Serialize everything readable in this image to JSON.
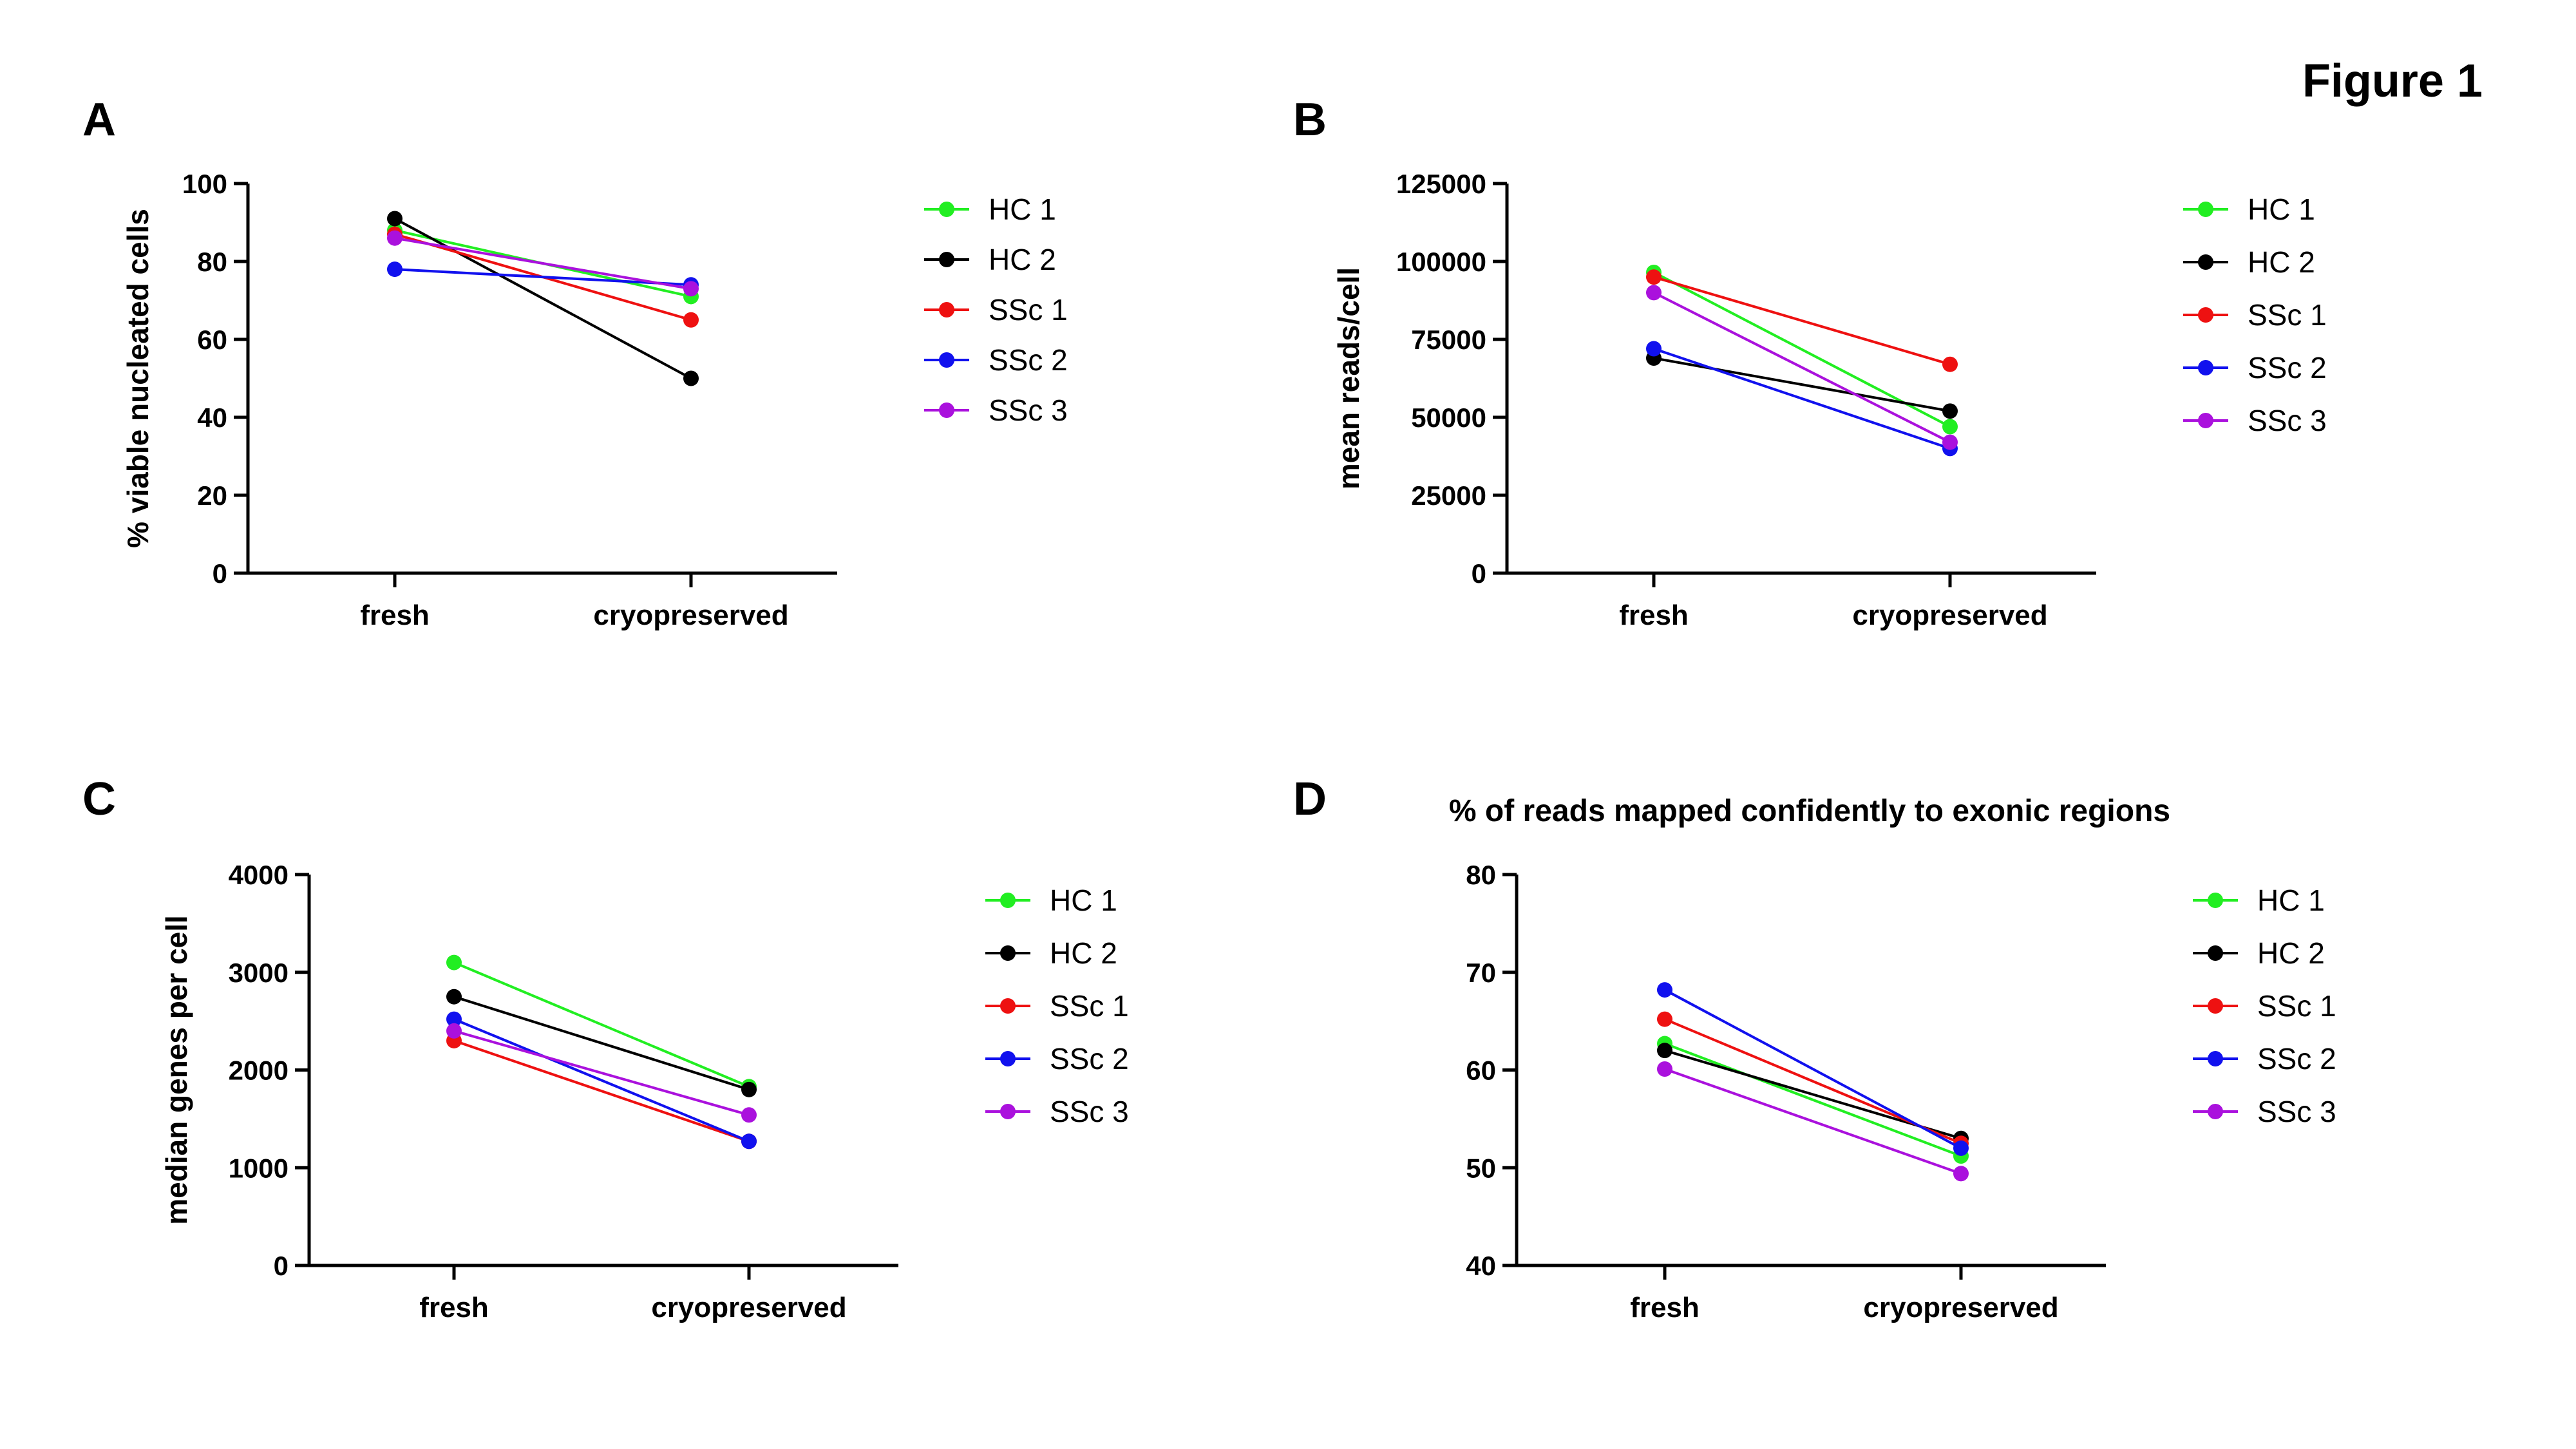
{
  "figure_title": "Figure 1",
  "colors": {
    "HC 1": "#22ee22",
    "HC 2": "#000000",
    "SSc 1": "#ee1111",
    "SSc 2": "#1111ee",
    "SSc 3": "#aa11dd"
  },
  "panels": [
    {
      "letter": "A",
      "title": ""
    },
    {
      "letter": "B",
      "title": ""
    },
    {
      "letter": "C",
      "title": ""
    },
    {
      "letter": "D",
      "title": "% of reads mapped confidently to exonic regions"
    }
  ],
  "chart_data": [
    {
      "type": "line",
      "title": "",
      "xlabel": "",
      "ylabel": "% viable nucleated cells",
      "categories": [
        "fresh",
        "cryopreserved"
      ],
      "ylim": [
        0,
        100
      ],
      "yticks": [
        0,
        20,
        40,
        60,
        80,
        100
      ],
      "ytick_labels": [
        "0",
        "20",
        "40",
        "60",
        "80",
        "100"
      ],
      "legend_position": "right",
      "series": [
        {
          "name": "HC 1",
          "values": [
            88,
            71
          ]
        },
        {
          "name": "HC 2",
          "values": [
            91,
            50
          ]
        },
        {
          "name": "SSc 1",
          "values": [
            87,
            65
          ]
        },
        {
          "name": "SSc 2",
          "values": [
            78,
            74
          ]
        },
        {
          "name": "SSc 3",
          "values": [
            86,
            73
          ]
        }
      ]
    },
    {
      "type": "line",
      "title": "",
      "xlabel": "",
      "ylabel": "mean reads/cell",
      "categories": [
        "fresh",
        "cryopreserved"
      ],
      "ylim": [
        0,
        125000
      ],
      "yticks": [
        0,
        25000,
        50000,
        75000,
        100000,
        125000
      ],
      "ytick_labels": [
        "0",
        "25000",
        "50000",
        "75000",
        "100000",
        "125000"
      ],
      "legend_position": "right",
      "series": [
        {
          "name": "HC 1",
          "values": [
            96500,
            47000
          ]
        },
        {
          "name": "HC 2",
          "values": [
            69000,
            52000
          ]
        },
        {
          "name": "SSc 1",
          "values": [
            95000,
            67000
          ]
        },
        {
          "name": "SSc 2",
          "values": [
            72000,
            40000
          ]
        },
        {
          "name": "SSc 3",
          "values": [
            90000,
            42000
          ]
        }
      ]
    },
    {
      "type": "line",
      "title": "",
      "xlabel": "",
      "ylabel": "median genes per cell",
      "categories": [
        "fresh",
        "cryopreserved"
      ],
      "ylim": [
        0,
        4000
      ],
      "yticks": [
        0,
        1000,
        2000,
        3000,
        4000
      ],
      "ytick_labels": [
        "0",
        "1000",
        "2000",
        "3000",
        "4000"
      ],
      "legend_position": "right",
      "series": [
        {
          "name": "HC 1",
          "values": [
            3100,
            1830
          ]
        },
        {
          "name": "HC 2",
          "values": [
            2750,
            1800
          ]
        },
        {
          "name": "SSc 1",
          "values": [
            2300,
            1270
          ]
        },
        {
          "name": "SSc 2",
          "values": [
            2520,
            1270
          ]
        },
        {
          "name": "SSc 3",
          "values": [
            2400,
            1540
          ]
        }
      ]
    },
    {
      "type": "line",
      "title": "% of reads mapped confidently to exonic regions",
      "xlabel": "",
      "ylabel": "",
      "categories": [
        "fresh",
        "cryopreserved"
      ],
      "ylim": [
        40,
        80
      ],
      "yticks": [
        40,
        50,
        60,
        70,
        80
      ],
      "ytick_labels": [
        "40",
        "50",
        "60",
        "70",
        "80"
      ],
      "legend_position": "right",
      "series": [
        {
          "name": "HC 1",
          "values": [
            62.7,
            51.2
          ]
        },
        {
          "name": "HC 2",
          "values": [
            62,
            53
          ]
        },
        {
          "name": "SSc 1",
          "values": [
            65.2,
            52.5
          ]
        },
        {
          "name": "SSc 2",
          "values": [
            68.2,
            52
          ]
        },
        {
          "name": "SSc 3",
          "values": [
            60.1,
            49.4
          ]
        }
      ]
    }
  ]
}
